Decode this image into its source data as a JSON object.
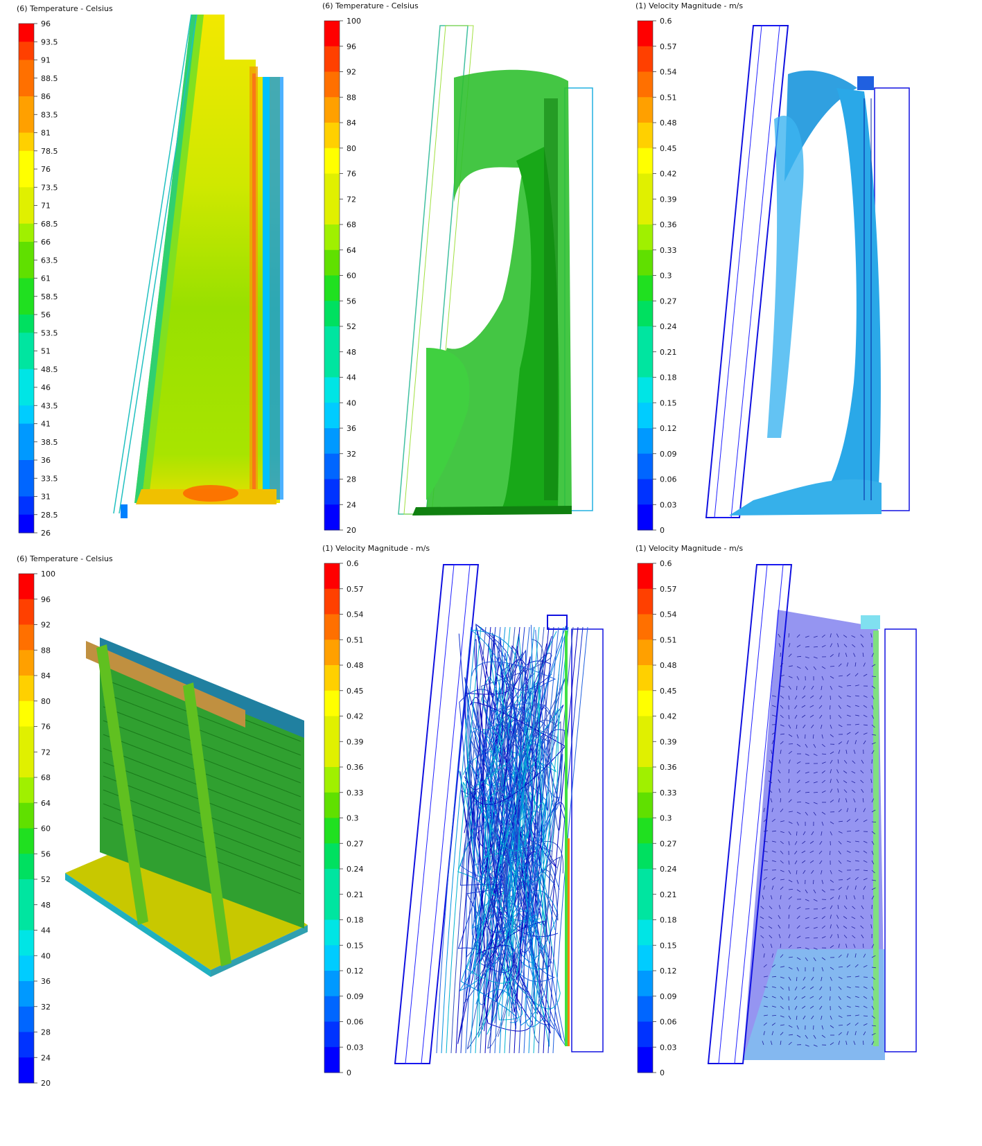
{
  "colors": {
    "scale": [
      "#0000ff",
      "#0033ff",
      "#0066ff",
      "#0099ff",
      "#00ccff",
      "#00e5e5",
      "#00e5a0",
      "#00e060",
      "#20e020",
      "#60e000",
      "#a0f000",
      "#e0f000",
      "#ffff00",
      "#ffd000",
      "#ffa000",
      "#ff7000",
      "#ff4000",
      "#ff0000"
    ]
  },
  "panels": [
    {
      "id": "p1",
      "title": "(6) Temperature - Celsius",
      "ticks": [
        "96",
        "93.5",
        "91",
        "88.5",
        "86",
        "83.5",
        "81",
        "78.5",
        "76",
        "73.5",
        "71",
        "68.5",
        "66",
        "63.5",
        "61",
        "58.5",
        "56",
        "53.5",
        "51",
        "48.5",
        "46",
        "43.5",
        "41",
        "38.5",
        "36",
        "33.5",
        "31",
        "28.5",
        "26"
      ],
      "scene": "temperature-contour-section"
    },
    {
      "id": "p2",
      "title": "(6) Temperature - Celsius",
      "ticks": [
        "100",
        "96",
        "92",
        "88",
        "84",
        "80",
        "76",
        "72",
        "68",
        "64",
        "60",
        "56",
        "52",
        "48",
        "44",
        "40",
        "36",
        "32",
        "28",
        "24",
        "20"
      ],
      "scene": "temperature-isosurface"
    },
    {
      "id": "p3",
      "title": "(1) Velocity Magnitude - m/s",
      "ticks": [
        "0.6",
        "0.57",
        "0.54",
        "0.51",
        "0.48",
        "0.45",
        "0.42",
        "0.39",
        "0.36",
        "0.33",
        "0.3",
        "0.27",
        "0.24",
        "0.21",
        "0.18",
        "0.15",
        "0.12",
        "0.09",
        "0.06",
        "0.03",
        "0"
      ],
      "scene": "velocity-isosurface"
    },
    {
      "id": "p4",
      "title": "(6) Temperature - Celsius",
      "ticks": [
        "100",
        "96",
        "92",
        "88",
        "84",
        "80",
        "76",
        "72",
        "68",
        "64",
        "60",
        "56",
        "52",
        "48",
        "44",
        "40",
        "36",
        "32",
        "28",
        "24",
        "20"
      ],
      "scene": "temperature-3d-model"
    },
    {
      "id": "p5",
      "title": "(1) Velocity Magnitude - m/s",
      "ticks": [
        "0.6",
        "0.57",
        "0.54",
        "0.51",
        "0.48",
        "0.45",
        "0.42",
        "0.39",
        "0.36",
        "0.33",
        "0.3",
        "0.27",
        "0.24",
        "0.21",
        "0.18",
        "0.15",
        "0.12",
        "0.09",
        "0.06",
        "0.03",
        "0"
      ],
      "scene": "velocity-streamlines"
    },
    {
      "id": "p6",
      "title": "(1) Velocity Magnitude - m/s",
      "ticks": [
        "0.6",
        "0.57",
        "0.54",
        "0.51",
        "0.48",
        "0.45",
        "0.42",
        "0.39",
        "0.36",
        "0.33",
        "0.3",
        "0.27",
        "0.24",
        "0.21",
        "0.18",
        "0.15",
        "0.12",
        "0.09",
        "0.06",
        "0.03",
        "0"
      ],
      "scene": "velocity-vector-field"
    }
  ]
}
